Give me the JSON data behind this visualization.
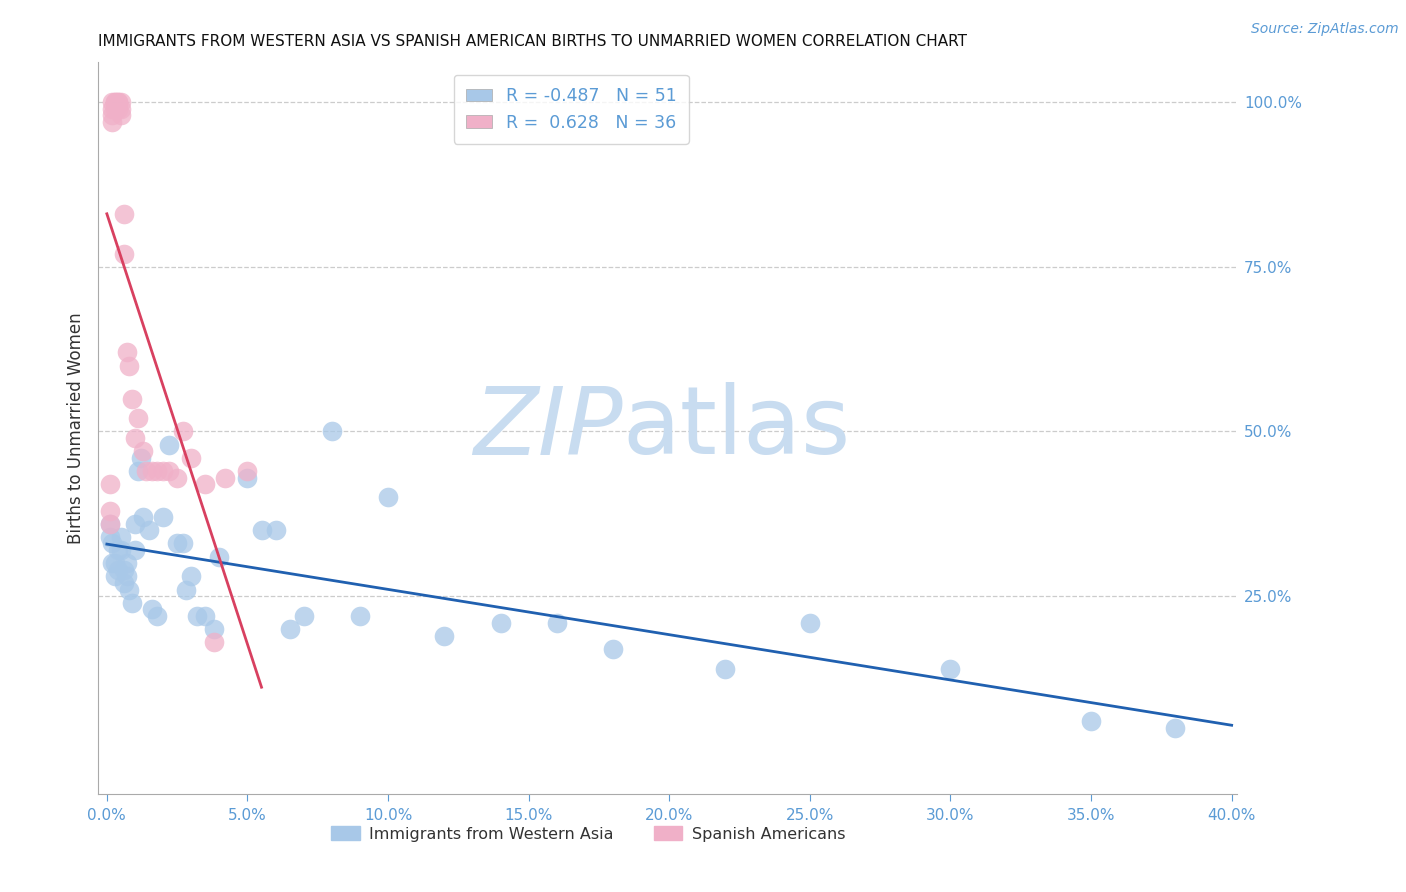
{
  "title": "IMMIGRANTS FROM WESTERN ASIA VS SPANISH AMERICAN BIRTHS TO UNMARRIED WOMEN CORRELATION CHART",
  "source": "Source: ZipAtlas.com",
  "ylabel": "Births to Unmarried Women",
  "xlim_min": -0.003,
  "xlim_max": 0.402,
  "ylim_min": -0.05,
  "ylim_max": 1.06,
  "blue_R": -0.487,
  "blue_N": 51,
  "pink_R": 0.628,
  "pink_N": 36,
  "blue_color": "#a8c8e8",
  "pink_color": "#f0b0c8",
  "blue_line_color": "#2060b0",
  "pink_line_color": "#d84060",
  "axis_color": "#5b9bd5",
  "title_color": "#111111",
  "watermark_zip_color": "#c8dcf0",
  "watermark_atlas_color": "#c8dcf0",
  "grid_color": "#cccccc",
  "right_yticks": [
    1.0,
    0.75,
    0.5,
    0.25
  ],
  "xticks": [
    0.0,
    0.05,
    0.1,
    0.15,
    0.2,
    0.25,
    0.3,
    0.35,
    0.4
  ],
  "legend_blue_label": "Immigrants from Western Asia",
  "legend_pink_label": "Spanish Americans",
  "blue_x": [
    0.001,
    0.001,
    0.002,
    0.002,
    0.003,
    0.003,
    0.004,
    0.004,
    0.005,
    0.005,
    0.006,
    0.006,
    0.007,
    0.007,
    0.008,
    0.009,
    0.01,
    0.01,
    0.011,
    0.012,
    0.013,
    0.015,
    0.016,
    0.018,
    0.02,
    0.022,
    0.025,
    0.027,
    0.028,
    0.03,
    0.032,
    0.035,
    0.038,
    0.04,
    0.05,
    0.055,
    0.06,
    0.065,
    0.07,
    0.08,
    0.09,
    0.1,
    0.12,
    0.14,
    0.16,
    0.18,
    0.22,
    0.25,
    0.3,
    0.35,
    0.38
  ],
  "blue_y": [
    0.36,
    0.34,
    0.33,
    0.3,
    0.3,
    0.28,
    0.29,
    0.32,
    0.32,
    0.34,
    0.27,
    0.29,
    0.3,
    0.28,
    0.26,
    0.24,
    0.36,
    0.32,
    0.44,
    0.46,
    0.37,
    0.35,
    0.23,
    0.22,
    0.37,
    0.48,
    0.33,
    0.33,
    0.26,
    0.28,
    0.22,
    0.22,
    0.2,
    0.31,
    0.43,
    0.35,
    0.35,
    0.2,
    0.22,
    0.5,
    0.22,
    0.4,
    0.19,
    0.21,
    0.21,
    0.17,
    0.14,
    0.21,
    0.14,
    0.06,
    0.05
  ],
  "pink_x": [
    0.001,
    0.001,
    0.001,
    0.002,
    0.002,
    0.002,
    0.002,
    0.003,
    0.003,
    0.003,
    0.004,
    0.004,
    0.004,
    0.005,
    0.005,
    0.005,
    0.006,
    0.006,
    0.007,
    0.008,
    0.009,
    0.01,
    0.011,
    0.013,
    0.014,
    0.016,
    0.018,
    0.02,
    0.022,
    0.025,
    0.027,
    0.03,
    0.035,
    0.038,
    0.042,
    0.05
  ],
  "pink_y": [
    0.36,
    0.38,
    0.42,
    0.97,
    0.98,
    0.99,
    1.0,
    0.99,
    1.0,
    1.0,
    1.0,
    0.99,
    1.0,
    0.98,
    1.0,
    0.99,
    0.83,
    0.77,
    0.62,
    0.6,
    0.55,
    0.49,
    0.52,
    0.47,
    0.44,
    0.44,
    0.44,
    0.44,
    0.44,
    0.43,
    0.5,
    0.46,
    0.42,
    0.18,
    0.43,
    0.44
  ]
}
